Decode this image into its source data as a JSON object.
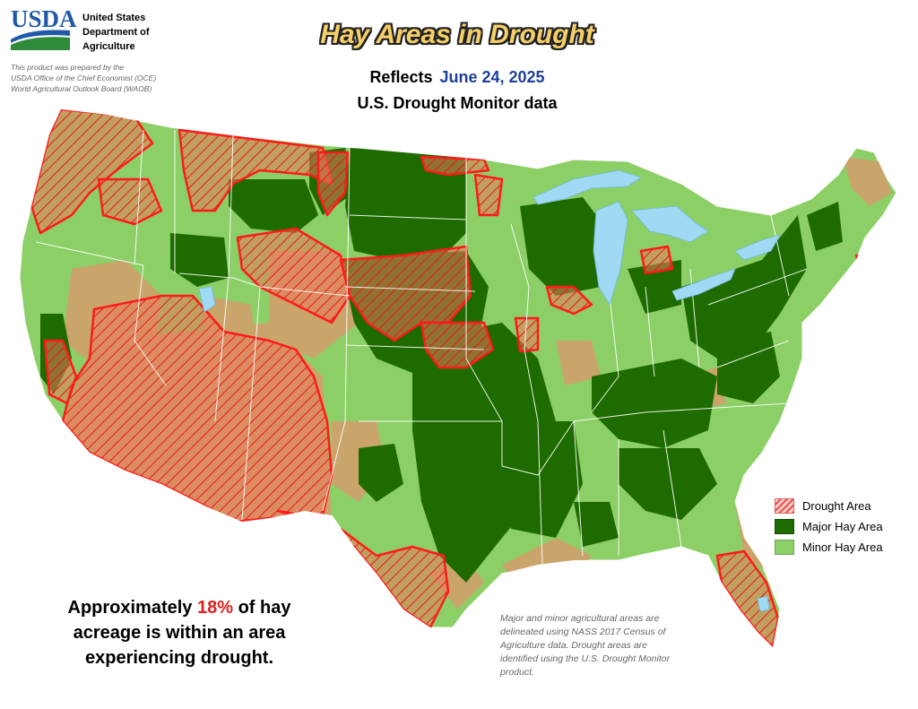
{
  "header": {
    "logo_text": "USDA",
    "department_lines": [
      "United States",
      "Department of",
      "Agriculture"
    ],
    "prepared_by_lines": [
      "This product was prepared by the",
      "USDA Office of the Chief Economist (OCE)",
      "World Agricultural Outlook Board (WAOB)"
    ]
  },
  "title": "Hay Areas in Drought",
  "reflects_label": "Reflects",
  "date": "June 24, 2025",
  "source_line": "U.S. Drought Monitor data",
  "legend": {
    "drought": "Drought Area",
    "major": "Major Hay Area",
    "minor": "Minor Hay Area"
  },
  "summary": {
    "prefix": "Approximately",
    "percent": "18%",
    "suffix": "of hay",
    "line2": "acreage is within an area",
    "line3": "experiencing drought."
  },
  "footnote_lines": [
    "Major and minor agricultural areas are",
    "delineated using NASS 2017 Census of",
    "Agriculture data.  Drought areas are",
    "identified using the U.S. Drought Monitor",
    "product."
  ],
  "colors": {
    "major_hay": "#1e6b00",
    "minor_hay": "#8ccf66",
    "non_hay": "#c9a56b",
    "drought_outline": "#ff1a1a",
    "drought_fill": "#e8896a",
    "water": "#9fd9f3",
    "title_fill": "#f5cf6a"
  }
}
